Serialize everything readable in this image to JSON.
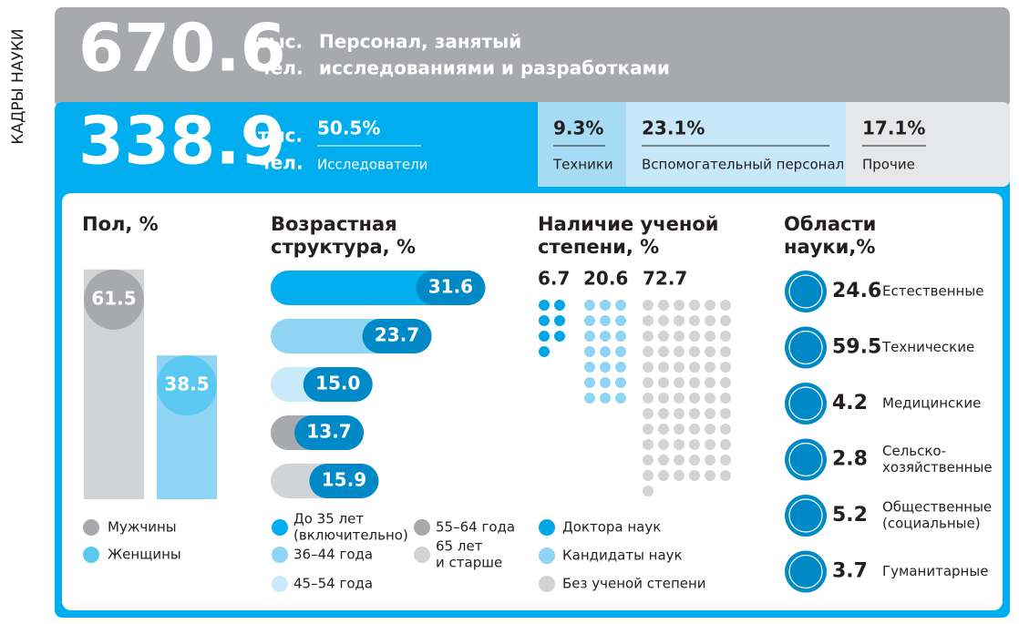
{
  "side_title": "КАДРЫ НАУКИ",
  "total": {
    "value": 670.6,
    "unit": [
      "тыс.",
      "чел."
    ],
    "label": [
      "Персонал, занятый",
      "исследованиями и разработками"
    ]
  },
  "researchers": {
    "value": 338.9,
    "unit": [
      "тыс.",
      "чел."
    ],
    "share": "50.5%",
    "name": "Исследователи"
  },
  "other_staff": [
    {
      "share": "9.3%",
      "name": "Техники"
    },
    {
      "share": "23.1%",
      "name": "Вспомогательный персонал"
    },
    {
      "share": "17.1%",
      "name": "Прочие"
    }
  ],
  "sex": {
    "title": "Пол, %",
    "categories": [
      "Мужчины",
      "Женщины"
    ],
    "values": [
      61.5,
      38.5
    ],
    "colors": [
      "#d1d3d4",
      "#8fd4f3"
    ],
    "cap_colors": [
      "#a7a9ac",
      "#5bc8f2"
    ]
  },
  "age": {
    "title": [
      "Возрастная",
      "структура, %"
    ],
    "categories": [
      [
        "До 35 лет",
        "(включительно)"
      ],
      [
        "36–44 года"
      ],
      [
        "45–54 года"
      ],
      [
        "55–64 года"
      ],
      [
        "65 лет",
        "и старше"
      ]
    ],
    "values": [
      31.6,
      23.7,
      15.0,
      13.7,
      15.9
    ],
    "value_labels": [
      "31.6",
      "23.7",
      "15.0",
      "13.7",
      "15.9"
    ],
    "colors": [
      "#00aeef",
      "#8fd4f3",
      "#c8eafa",
      "#a7a9ac",
      "#d1d3d4"
    ]
  },
  "degree": {
    "title": [
      "Наличие ученой",
      "степени, %"
    ],
    "categories": [
      "Доктора наук",
      "Кандидаты наук",
      "Без ученой степени"
    ],
    "values": [
      6.7,
      20.6,
      72.7
    ],
    "colors": [
      "#00a6e4",
      "#8fd4f3",
      "#d1d3d4"
    ]
  },
  "fields": {
    "title": [
      "Области",
      "науки,%"
    ],
    "categories": [
      [
        "Естественные"
      ],
      [
        "Технические"
      ],
      [
        "Медицинские"
      ],
      [
        "Сельско-",
        "хозяйственные"
      ],
      [
        "Общественные",
        "(социальные)"
      ],
      [
        "Гуманитарные"
      ]
    ],
    "values": [
      24.6,
      59.5,
      4.2,
      2.8,
      5.2,
      3.7
    ]
  }
}
